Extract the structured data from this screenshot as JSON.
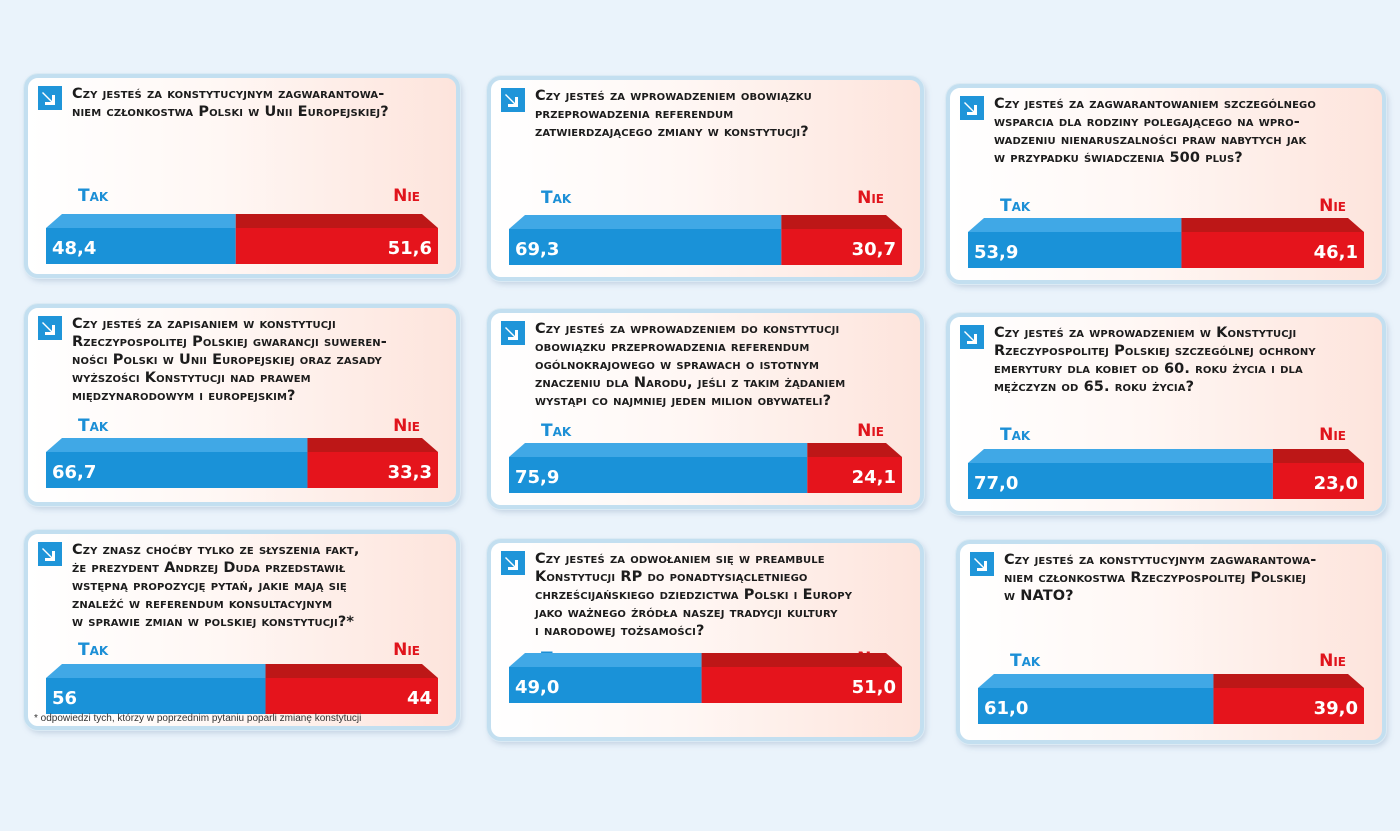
{
  "colors": {
    "tak_top": "#40a8e6",
    "tak_front": "#1a92d8",
    "nie_top": "#bd1717",
    "nie_front": "#e5141c",
    "tak_label": "#1c8fd6",
    "nie_label": "#e0141c"
  },
  "labels": {
    "tak": "Tak",
    "nie": "Nie"
  },
  "chart_data": [
    {
      "type": "bar",
      "title": "Czy jesteś za konstytucyjnym zagwarantowaniem członkostwa Polski w Unii Europejskiej?",
      "title_lines": [
        "Czy jesteś za konstytucyjnym zagwarantowa-",
        "niem członkostwa Polski w Unii Europejskiej?"
      ],
      "categories": [
        "Tak",
        "Nie"
      ],
      "values": [
        48.4,
        51.6
      ],
      "value_labels": [
        "48,4",
        "51,6"
      ]
    },
    {
      "type": "bar",
      "title": "Czy jesteś za wprowadzeniem obowiązku przeprowadzenia referendum zatwierdzającego zmiany w konstytucji?",
      "title_lines": [
        "Czy jesteś za wprowadzeniem obowiązku",
        "przeprowadzenia referendum",
        "zatwierdzającego zmiany w konstytucji?"
      ],
      "categories": [
        "Tak",
        "Nie"
      ],
      "values": [
        69.3,
        30.7
      ],
      "value_labels": [
        "69,3",
        "30,7"
      ]
    },
    {
      "type": "bar",
      "title": "Czy jesteś za zagwarantowaniem szczególnego wsparcia dla rodziny polegającego na wprowadzeniu nienaruszalności praw nabytych jak w przypadku świadczenia 500 plus?",
      "title_lines": [
        "Czy jesteś za zagwarantowaniem szczególnego",
        "wsparcia dla rodziny polegającego na wpro-",
        "wadzeniu nienaruszalności praw nabytych jak",
        "w przypadku świadczenia 500 plus?"
      ],
      "categories": [
        "Tak",
        "Nie"
      ],
      "values": [
        53.9,
        46.1
      ],
      "value_labels": [
        "53,9",
        "46,1"
      ]
    },
    {
      "type": "bar",
      "title": "Czy jesteś za zapisaniem w konstytucji Rzeczypospolitej Polskiej gwarancji suwerenności Polski w Unii Europejskiej oraz zasady wyższości Konstytucji nad prawem międzynarodowym i europejskim?",
      "title_lines": [
        "Czy jesteś za zapisaniem w konstytucji",
        "Rzeczypospolitej Polskiej gwarancji suweren-",
        "ności Polski w Unii Europejskiej oraz zasady",
        "wyższości Konstytucji nad prawem",
        "międzynarodowym i europejskim?"
      ],
      "categories": [
        "Tak",
        "Nie"
      ],
      "values": [
        66.7,
        33.3
      ],
      "value_labels": [
        "66,7",
        "33,3"
      ]
    },
    {
      "type": "bar",
      "title": "Czy jesteś za wprowadzeniem do konstytucji obowiązku przeprowadzenia referendum ogólnokrajowego w sprawach o istotnym znaczeniu dla Narodu, jeśli z takim żądaniem wystąpi co najmniej jeden milion obywateli?",
      "title_lines": [
        "Czy jesteś za wprowadzeniem do konstytucji",
        "obowiązku przeprowadzenia referendum",
        "ogólnokrajowego w sprawach o istotnym",
        "znaczeniu dla Narodu, jeśli z takim żądaniem",
        "wystąpi co najmniej jeden milion obywateli?"
      ],
      "categories": [
        "Tak",
        "Nie"
      ],
      "values": [
        75.9,
        24.1
      ],
      "value_labels": [
        "75,9",
        "24,1"
      ]
    },
    {
      "type": "bar",
      "title": "Czy jesteś za wprowadzeniem w Konstytucji Rzeczypospolitej Polskiej szczególnej ochrony emerytury dla kobiet od 60. roku życia i dla mężczyzn od 65. roku życia?",
      "title_lines": [
        "Czy jesteś za wprowadzeniem w Konstytucji",
        "Rzeczypospolitej Polskiej szczególnej ochrony",
        "emerytury dla kobiet od 60. roku życia i dla",
        "mężczyzn od 65. roku życia?"
      ],
      "categories": [
        "Tak",
        "Nie"
      ],
      "values": [
        77.0,
        23.0
      ],
      "value_labels": [
        "77,0",
        "23,0"
      ]
    },
    {
      "type": "bar",
      "title": "Czy znasz choćby tylko ze słyszenia fakt, że prezydent Andrzej Duda przedstawił wstępną propozycję pytań, jakie mają się znaleźć w referendum konsultacyjnym w sprawie zmian w polskiej konstytucji?*",
      "title_lines": [
        "Czy znasz choćby tylko ze słyszenia fakt,",
        "że prezydent Andrzej Duda przedstawił",
        "wstępną propozycję pytań, jakie mają się",
        "znaleźć w referendum konsultacyjnym",
        "w sprawie zmian w polskiej konstytucji?*"
      ],
      "categories": [
        "Tak",
        "Nie"
      ],
      "values": [
        56,
        44
      ],
      "value_labels": [
        "56",
        "44"
      ],
      "footnote": "* odpowiedzi tych, którzy w poprzednim pytaniu poparli zmianę konstytucji"
    },
    {
      "type": "bar",
      "title": "Czy jesteś za odwołaniem się w preambule Konstytucji RP do ponadtysiącletniego chrześcijańskiego dziedzictwa Polski i Europy jako ważnego źródła naszej tradycji kultury i narodowej tożsamości?",
      "title_lines": [
        "Czy jesteś za odwołaniem się w preambule",
        "Konstytucji RP do ponadtysiącletniego",
        "chrześcijańskiego dziedzictwa Polski i Europy",
        "jako ważnego źródła naszej tradycji kultury",
        "i narodowej tożsamości?"
      ],
      "categories": [
        "Tak",
        "Nie"
      ],
      "values": [
        49.0,
        51.0
      ],
      "value_labels": [
        "49,0",
        "51,0"
      ]
    },
    {
      "type": "bar",
      "title": "Czy jesteś za konstytucyjnym zagwarantowaniem członkostwa Rzeczypospolitej Polskiej w NATO?",
      "title_lines": [
        "Czy jesteś za konstytucyjnym zagwarantowa-",
        "niem członkostwa Rzeczypospolitej Polskiej",
        "w NATO?"
      ],
      "categories": [
        "Tak",
        "Nie"
      ],
      "values": [
        61.0,
        39.0
      ],
      "value_labels": [
        "61,0",
        "39,0"
      ]
    }
  ]
}
